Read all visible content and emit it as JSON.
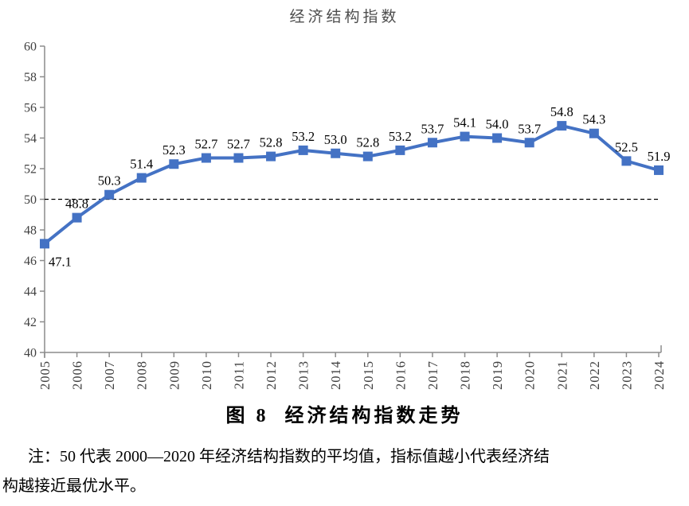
{
  "page": {
    "chart_title": "经济结构指数",
    "caption": "图 8  经济结构指数走势",
    "note_line1": "注：50 代表 2000—2020 年经济结构指数的平均值，指标值越小代表经济结",
    "note_line2": "构越接近最优水平。"
  },
  "chart_data": {
    "type": "line",
    "title": "经济结构指数",
    "categories": [
      "2005",
      "2006",
      "2007",
      "2008",
      "2009",
      "2010",
      "2011",
      "2012",
      "2013",
      "2014",
      "2015",
      "2016",
      "2017",
      "2018",
      "2019",
      "2020",
      "2021",
      "2022",
      "2023",
      "2024"
    ],
    "series": [
      {
        "name": "经济结构指数",
        "values": [
          47.1,
          48.8,
          50.3,
          51.4,
          52.3,
          52.7,
          52.7,
          52.8,
          53.2,
          53.0,
          52.8,
          53.2,
          53.7,
          54.1,
          54.0,
          53.7,
          54.8,
          54.3,
          52.5,
          51.9
        ]
      }
    ],
    "ylim": [
      40,
      60
    ],
    "ytick_step": 2,
    "yticks": [
      "40",
      "42",
      "44",
      "46",
      "48",
      "50",
      "52",
      "54",
      "56",
      "58",
      "60"
    ],
    "reference_line_y": 50,
    "reference_line_style": "dashed",
    "reference_line_color": "#000000",
    "line_color": "#4472C4",
    "marker": "square",
    "marker_color": "#4472C4",
    "axis_color": "#8c8c8c",
    "data_labels": true,
    "data_label_decimals": 1,
    "label_position_overrides": {
      "0": "below-right"
    },
    "xlabel": "",
    "ylabel": "",
    "grid": false,
    "legend_position": "none"
  }
}
